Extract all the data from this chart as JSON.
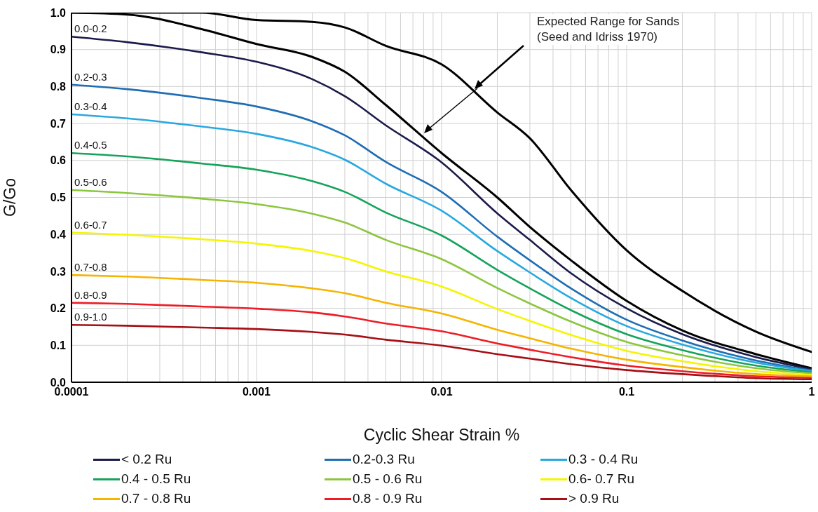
{
  "chart_data": {
    "type": "line",
    "xlabel": "Cyclic Shear Strain %",
    "ylabel": "G/Go",
    "log": "x",
    "grid": true,
    "legend": "bottom",
    "x": [
      0.0001,
      0.0002,
      0.0005,
      0.001,
      0.002,
      0.003,
      0.005,
      0.01,
      0.02,
      0.03,
      0.05,
      0.1,
      0.2,
      0.5,
      1
    ],
    "xlim": [
      0.0001,
      1
    ],
    "xticks": [
      0.0001,
      0.001,
      0.01,
      0.1,
      1
    ],
    "ylim": [
      0,
      1
    ],
    "yticks": [
      {
        "value": 0,
        "label": "0.0"
      },
      {
        "value": 0.1,
        "label": "0.1"
      },
      {
        "value": 0.2,
        "label": "0.2"
      },
      {
        "value": 0.3,
        "label": "0.3"
      },
      {
        "value": 0.4,
        "label": "0.4"
      },
      {
        "value": 0.5,
        "label": "0.5"
      },
      {
        "value": 0.6,
        "label": "0.6"
      },
      {
        "value": 0.7,
        "label": "0.7"
      },
      {
        "value": 0.8,
        "label": "0.8"
      },
      {
        "value": 0.9,
        "label": "0.9"
      },
      {
        "value": 1,
        "label": "1.0"
      }
    ],
    "series": [
      {
        "color": "#000000",
        "values": [
          1,
          1,
          1,
          0.98,
          0.975,
          0.96,
          0.91,
          0.86,
          0.73,
          0.66,
          0.52,
          0.357,
          0.247,
          0.137,
          0.082
        ]
      },
      {
        "color": "#000000",
        "values": [
          1,
          0.995,
          0.956,
          0.915,
          0.88,
          0.84,
          0.75,
          0.62,
          0.5,
          0.42,
          0.33,
          0.22,
          0.14,
          0.076,
          0.038
        ]
      },
      {
        "name": "< 0.2 Ru",
        "color": "#1b1b4b",
        "values": [
          0.935,
          0.92,
          0.893,
          0.867,
          0.82,
          0.774,
          0.695,
          0.595,
          0.457,
          0.385,
          0.295,
          0.2,
          0.13,
          0.068,
          0.035
        ]
      },
      {
        "name": "0.2-0.3 Ru",
        "color": "#1f6db3",
        "values": [
          0.805,
          0.793,
          0.769,
          0.746,
          0.706,
          0.668,
          0.596,
          0.515,
          0.394,
          0.33,
          0.254,
          0.169,
          0.113,
          0.059,
          0.032
        ]
      },
      {
        "name": "0.3 - 0.4 Ru",
        "color": "#29a8e0",
        "values": [
          0.725,
          0.714,
          0.692,
          0.672,
          0.636,
          0.602,
          0.537,
          0.464,
          0.355,
          0.297,
          0.228,
          0.152,
          0.102,
          0.053,
          0.03
        ]
      },
      {
        "name": "0.4 - 0.5 Ru",
        "color": "#16a35a",
        "values": [
          0.62,
          0.611,
          0.592,
          0.575,
          0.544,
          0.515,
          0.459,
          0.397,
          0.304,
          0.254,
          0.195,
          0.13,
          0.087,
          0.045,
          0.027
        ]
      },
      {
        "name": "0.5 - 0.6 Ru",
        "color": "#8cc63f",
        "values": [
          0.52,
          0.512,
          0.497,
          0.482,
          0.456,
          0.432,
          0.385,
          0.333,
          0.255,
          0.213,
          0.164,
          0.109,
          0.073,
          0.038,
          0.024
        ]
      },
      {
        "name": "0.6- 0.7 Ru",
        "color": "#f5f500",
        "values": [
          0.405,
          0.399,
          0.387,
          0.375,
          0.355,
          0.336,
          0.3,
          0.259,
          0.198,
          0.166,
          0.128,
          0.085,
          0.057,
          0.03,
          0.02
        ]
      },
      {
        "name": "0.7 - 0.8 Ru",
        "color": "#f5b400",
        "values": [
          0.29,
          0.286,
          0.277,
          0.269,
          0.254,
          0.241,
          0.215,
          0.186,
          0.142,
          0.119,
          0.091,
          0.061,
          0.041,
          0.022,
          0.016
        ]
      },
      {
        "name": "0.8 - 0.9 Ru",
        "color": "#ee1c25",
        "values": [
          0.215,
          0.212,
          0.205,
          0.199,
          0.189,
          0.178,
          0.159,
          0.138,
          0.105,
          0.088,
          0.068,
          0.045,
          0.03,
          0.016,
          0.012
        ]
      },
      {
        "name": "> 0.9 Ru",
        "color": "#a50f15",
        "values": [
          0.155,
          0.153,
          0.148,
          0.144,
          0.136,
          0.129,
          0.115,
          0.099,
          0.076,
          0.064,
          0.049,
          0.033,
          0.022,
          0.011,
          0.008
        ]
      }
    ],
    "annotations": [
      "0.0-0.2",
      "0.2-0.3",
      "0.3-0.4",
      "0.4-0.5",
      "0.5-0.6",
      "0.6-0.7",
      "0.7-0.8",
      "0.8-0.9",
      "0.9-1.0",
      "Expected Range for Sands\n(Seed and Idriss 1970)"
    ]
  }
}
